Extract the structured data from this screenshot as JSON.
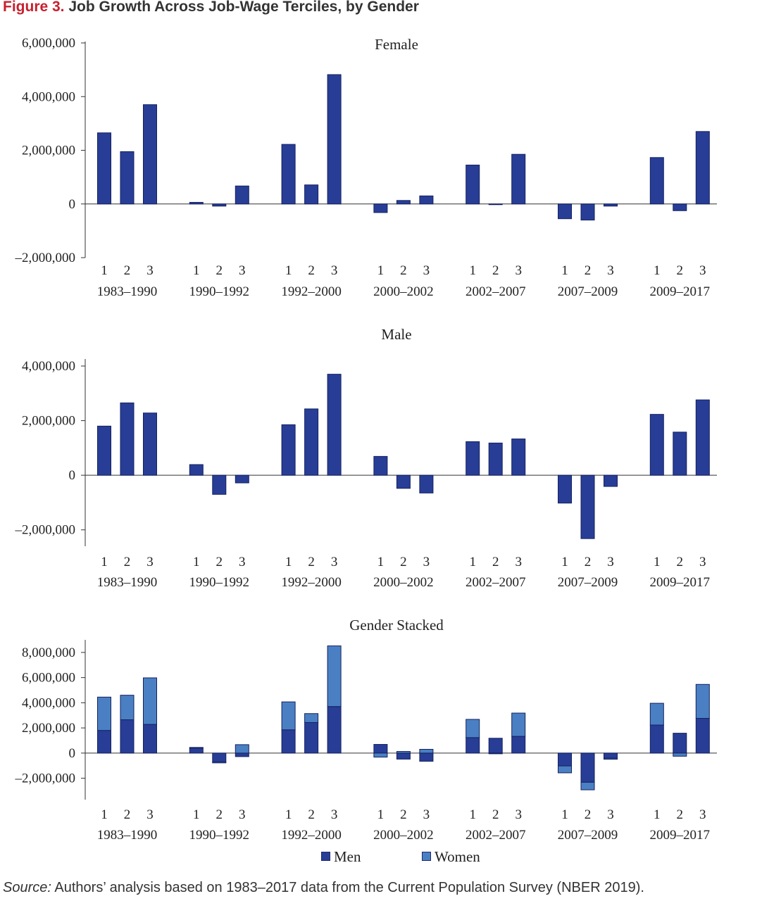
{
  "figure": {
    "label": "Figure 3.",
    "title": "Job Growth Across Job-Wage Terciles, by Gender"
  },
  "colors": {
    "men": "#283d96",
    "women": "#4a80c3",
    "bar_stroke": "#14225e"
  },
  "legend": [
    {
      "key": "men",
      "label": "Men"
    },
    {
      "key": "women",
      "label": "Women"
    }
  ],
  "source": {
    "label": "Source:",
    "text": "Authors’ analysis based on 1983–2017 data from the Current Population Survey (NBER 2019)."
  },
  "chart_data": [
    {
      "type": "bar",
      "title": "Female",
      "periods": [
        "1983–1990",
        "1990–1992",
        "1992–2000",
        "2000–2002",
        "2002–2007",
        "2007–2009",
        "2009–2017"
      ],
      "terciles": [
        "1",
        "2",
        "3"
      ],
      "ylim": [
        -2000000,
        6000000
      ],
      "yticks": [
        -2000000,
        0,
        2000000,
        4000000,
        6000000
      ],
      "ytick_labels": [
        "–2,000,000",
        "0",
        "2,000,000",
        "4,000,000",
        "6,000,000"
      ],
      "series": [
        {
          "name": "Women",
          "color": "#283d96",
          "values": [
            2650000,
            1950000,
            3700000,
            60000,
            -80000,
            670000,
            2220000,
            710000,
            4820000,
            -320000,
            130000,
            300000,
            1450000,
            -20000,
            1850000,
            -550000,
            -600000,
            -80000,
            1730000,
            -250000,
            2700000
          ]
        }
      ]
    },
    {
      "type": "bar",
      "title": "Male",
      "periods": [
        "1983–1990",
        "1990–1992",
        "1992–2000",
        "2000–2002",
        "2002–2007",
        "2007–2009",
        "2009–2017"
      ],
      "terciles": [
        "1",
        "2",
        "3"
      ],
      "ylim": [
        -2600000,
        4000000
      ],
      "yticks": [
        -2000000,
        0,
        2000000,
        4000000
      ],
      "ytick_labels": [
        "–2,000,000",
        "0",
        "2,000,000",
        "4,000,000"
      ],
      "series": [
        {
          "name": "Men",
          "color": "#283d96",
          "values": [
            1800000,
            2650000,
            2280000,
            390000,
            -700000,
            -280000,
            1850000,
            2430000,
            3700000,
            690000,
            -480000,
            -650000,
            1230000,
            1180000,
            1330000,
            -1020000,
            -2320000,
            -410000,
            2230000,
            1580000,
            2760000
          ]
        }
      ]
    },
    {
      "type": "bar",
      "stacked": true,
      "title": "Gender Stacked",
      "periods": [
        "1983–1990",
        "1990–1992",
        "1992–2000",
        "2000–2002",
        "2002–2007",
        "2007–2009",
        "2009–2017"
      ],
      "terciles": [
        "1",
        "2",
        "3"
      ],
      "ylim": [
        -3700000,
        9000000
      ],
      "yticks": [
        -2000000,
        0,
        2000000,
        4000000,
        6000000,
        8000000
      ],
      "ytick_labels": [
        "–2,000,000",
        "0",
        "2,000,000",
        "4,000,000",
        "6,000,000",
        "8,000,000"
      ],
      "series": [
        {
          "name": "Men",
          "color": "#283d96",
          "values": [
            1800000,
            2650000,
            2280000,
            390000,
            -700000,
            -280000,
            1850000,
            2430000,
            3700000,
            690000,
            -480000,
            -650000,
            1230000,
            1180000,
            1330000,
            -1020000,
            -2320000,
            -410000,
            2230000,
            1580000,
            2760000
          ]
        },
        {
          "name": "Women",
          "color": "#4a80c3",
          "values": [
            2650000,
            1950000,
            3700000,
            60000,
            -80000,
            670000,
            2220000,
            710000,
            4820000,
            -320000,
            130000,
            300000,
            1450000,
            -20000,
            1850000,
            -550000,
            -600000,
            -80000,
            1730000,
            -250000,
            2700000
          ]
        }
      ]
    }
  ]
}
